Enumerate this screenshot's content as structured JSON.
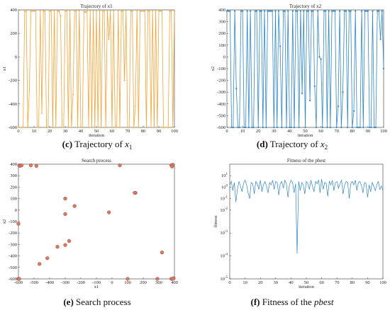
{
  "chart_data": [
    {
      "type": "line",
      "title": "Trajectory of x1",
      "xlabel": "iteration",
      "ylabel": "x1",
      "xlim": [
        0,
        100
      ],
      "ylim": [
        -600,
        400
      ],
      "xticks": [
        "0",
        "10",
        "20",
        "30",
        "40",
        "50",
        "60",
        "70",
        "80",
        "90",
        "100"
      ],
      "yticks": [
        "400",
        "200",
        "0",
        "-200",
        "-400",
        "-600"
      ],
      "color": "#F4A236",
      "series": [
        {
          "x": [
            0,
            1,
            2,
            3,
            4,
            5,
            6,
            7,
            8,
            9,
            10,
            11,
            12,
            13,
            14,
            15,
            16,
            17,
            18,
            19,
            20,
            21,
            22,
            23,
            24,
            25,
            26,
            27,
            28,
            29,
            30,
            31,
            32,
            33,
            34,
            35,
            36,
            37,
            38,
            39,
            40,
            41,
            42,
            43,
            44,
            45,
            46,
            47,
            48,
            49,
            50,
            51,
            52,
            53,
            54,
            55,
            56,
            57,
            58,
            59,
            60,
            61,
            62,
            63,
            64,
            65,
            66,
            67,
            68,
            69,
            70,
            71,
            72,
            73,
            74,
            75,
            76,
            77,
            78,
            79,
            80,
            81,
            82,
            83,
            84,
            85,
            86,
            87,
            88,
            89,
            90,
            91,
            92,
            93,
            94,
            95,
            96,
            97,
            98,
            99,
            100
          ],
          "values": [
            -600,
            -600,
            -600,
            -600,
            390,
            390,
            -600,
            -280,
            390,
            390,
            390,
            390,
            -600,
            -600,
            390,
            -480,
            390,
            390,
            -600,
            -600,
            390,
            390,
            -600,
            390,
            -600,
            390,
            390,
            350,
            -600,
            -600,
            390,
            390,
            -600,
            390,
            -600,
            -320,
            390,
            390,
            -600,
            390,
            -600,
            -600,
            390,
            380,
            390,
            -600,
            390,
            -600,
            390,
            -600,
            390,
            -600,
            390,
            -600,
            390,
            390,
            -600,
            390,
            150,
            390,
            -600,
            390,
            -600,
            -600,
            390,
            -600,
            390,
            390,
            -200,
            390,
            -600,
            -600,
            390,
            390,
            -600,
            -420,
            390,
            -600,
            390,
            390,
            390,
            390,
            -600,
            390,
            390,
            -600,
            390,
            -600,
            390,
            -600,
            390,
            390,
            390,
            -600,
            -600,
            -600,
            -600,
            390,
            390,
            -600,
            390
          ]
        }
      ]
    },
    {
      "type": "line",
      "title": "Trajectory of x2",
      "xlabel": "iteration",
      "ylabel": "x2",
      "xlim": [
        0,
        100
      ],
      "ylim": [
        -600,
        400
      ],
      "xticks": [
        "0",
        "10",
        "20",
        "30",
        "40",
        "50",
        "60",
        "70",
        "80",
        "90",
        "100"
      ],
      "yticks": [
        "400",
        "300",
        "200",
        "100",
        "0",
        "-100",
        "-200",
        "-300",
        "-400",
        "-500",
        "-600"
      ],
      "color": "#2E86C8",
      "series": [
        {
          "x": [
            0,
            1,
            2,
            3,
            4,
            5,
            6,
            7,
            8,
            9,
            10,
            11,
            12,
            13,
            14,
            15,
            16,
            17,
            18,
            19,
            20,
            21,
            22,
            23,
            24,
            25,
            26,
            27,
            28,
            29,
            30,
            31,
            32,
            33,
            34,
            35,
            36,
            37,
            38,
            39,
            40,
            41,
            42,
            43,
            44,
            45,
            46,
            47,
            48,
            49,
            50,
            51,
            52,
            53,
            54,
            55,
            56,
            57,
            58,
            59,
            60,
            61,
            62,
            63,
            64,
            65,
            66,
            67,
            68,
            69,
            70,
            71,
            72,
            73,
            74,
            75,
            76,
            77,
            78,
            79,
            80,
            81,
            82,
            83,
            84,
            85,
            86,
            87,
            88,
            89,
            90,
            91,
            92,
            93,
            94,
            95,
            96,
            97,
            98,
            99,
            100
          ],
          "values": [
            390,
            390,
            390,
            -600,
            -600,
            390,
            -270,
            -600,
            -600,
            390,
            390,
            -600,
            -600,
            390,
            -600,
            390,
            -600,
            -600,
            390,
            390,
            -600,
            390,
            390,
            -600,
            390,
            -600,
            390,
            390,
            390,
            390,
            -600,
            390,
            -600,
            390,
            90,
            -600,
            390,
            390,
            -600,
            390,
            -600,
            -600,
            390,
            -600,
            390,
            390,
            -600,
            390,
            -310,
            390,
            -600,
            390,
            390,
            -370,
            390,
            390,
            -250,
            -600,
            390,
            0,
            -20,
            -600,
            390,
            390,
            -600,
            390,
            -600,
            390,
            390,
            390,
            -600,
            -420,
            390,
            -600,
            -300,
            390,
            390,
            -600,
            390,
            390,
            -600,
            -460,
            390,
            -600,
            -600,
            -600,
            390,
            -600,
            390,
            390,
            390,
            -600,
            -600,
            390,
            -600,
            -600,
            390,
            390,
            150,
            390,
            -100
          ]
        }
      ]
    },
    {
      "type": "scatter",
      "title": "Search process",
      "xlabel": "x1",
      "ylabel": "x2",
      "xlim": [
        -600,
        400
      ],
      "ylim": [
        -600,
        400
      ],
      "xticks": [
        "-600",
        "-500",
        "-400",
        "-300",
        "-200",
        "-100",
        "0",
        "100",
        "200",
        "300",
        "400"
      ],
      "yticks": [
        "400",
        "300",
        "200",
        "100",
        "0",
        "-100",
        "-200",
        "-300",
        "-400",
        "-500",
        "-600"
      ],
      "color": "#E07B4A",
      "points": [
        [
          -595,
          390
        ],
        [
          -590,
          385
        ],
        [
          -580,
          390
        ],
        [
          -520,
          390
        ],
        [
          -485,
          385
        ],
        [
          50,
          390
        ],
        [
          380,
          390
        ],
        [
          390,
          395
        ],
        [
          385,
          380
        ],
        [
          -600,
          -120
        ],
        [
          -600,
          -600
        ],
        [
          -595,
          -600
        ],
        [
          150,
          150
        ],
        [
          145,
          150
        ],
        [
          -300,
          100
        ],
        [
          -240,
          35
        ],
        [
          -300,
          -35
        ],
        [
          -20,
          -20
        ],
        [
          -350,
          -320
        ],
        [
          -300,
          -305
        ],
        [
          -275,
          -270
        ],
        [
          -415,
          -420
        ],
        [
          -465,
          -470
        ],
        [
          320,
          -370
        ],
        [
          100,
          -600
        ],
        [
          290,
          -600
        ],
        [
          380,
          -600
        ],
        [
          395,
          -595
        ],
        [
          390,
          -600
        ]
      ]
    },
    {
      "type": "line",
      "title": "Fitness of the pbest",
      "xlabel": "iteration",
      "ylabel": "fitness",
      "xlim": [
        0,
        100
      ],
      "ylim_log10": [
        -8,
        2
      ],
      "xticks": [
        "0",
        "10",
        "20",
        "30",
        "40",
        "50",
        "60",
        "70",
        "80",
        "90",
        "100"
      ],
      "yticks": [
        "10^1",
        "10^0",
        "10^-1",
        "10^-2",
        "10^-3",
        "10^-4",
        "10^-5"
      ],
      "color": "#2E86C8",
      "series": [
        {
          "x": [
            0,
            1,
            2,
            3,
            4,
            5,
            6,
            7,
            8,
            9,
            10,
            11,
            12,
            13,
            14,
            15,
            16,
            17,
            18,
            19,
            20,
            21,
            22,
            23,
            24,
            25,
            26,
            27,
            28,
            29,
            30,
            31,
            32,
            33,
            34,
            35,
            36,
            37,
            38,
            39,
            40,
            41,
            42,
            43,
            44,
            45,
            46,
            47,
            48,
            49,
            50,
            51,
            52,
            53,
            54,
            55,
            56,
            57,
            58,
            59,
            60,
            61,
            62,
            63,
            64,
            65,
            66,
            67,
            68,
            69,
            70,
            71,
            72,
            73,
            74,
            75,
            76,
            77,
            78,
            79,
            80,
            81,
            82,
            83,
            84,
            85,
            86,
            87,
            88,
            89,
            90,
            91,
            92,
            93,
            94,
            95,
            96,
            97,
            98,
            99,
            100
          ],
          "log10_values": [
            0.2,
            0.5,
            -0.3,
            0.4,
            -1.3,
            -0.2,
            0.5,
            0.1,
            -0.4,
            0.3,
            0.6,
            0.2,
            -0.5,
            -1.0,
            0.4,
            0.3,
            -0.6,
            0.5,
            0.3,
            -0.2,
            0.6,
            -0.4,
            0.2,
            0.5,
            0.1,
            -0.5,
            0.4,
            0.2,
            0.6,
            -0.2,
            0.5,
            0.4,
            -0.7,
            0.3,
            0.5,
            -0.1,
            0.6,
            0.3,
            -0.9,
            0.2,
            0.6,
            0.4,
            -0.5,
            0.3,
            -5.8,
            0.5,
            -0.3,
            0.4,
            0.2,
            -0.6,
            0.5,
            0.3,
            -0.2,
            0.6,
            0.1,
            -0.4,
            0.5,
            0.3,
            0.6,
            -0.5,
            0.7,
            -0.2,
            0.4,
            0.3,
            -0.8,
            0.5,
            0.2,
            0.6,
            -0.3,
            0.4,
            0.5,
            -0.1,
            0.3,
            0.6,
            -0.6,
            0.2,
            0.5,
            0.4,
            -1.0,
            0.3,
            0.5,
            0.2,
            0.6,
            -0.3,
            0.4,
            0.5,
            0.1,
            -0.5,
            0.4,
            0.3,
            -0.9,
            0.2,
            -0.4,
            0.4,
            0.1,
            -0.3,
            0.2,
            0.5,
            -0.2,
            0.1,
            -0.3
          ]
        }
      ]
    }
  ],
  "captions": {
    "c": {
      "letter": "(c)",
      "text": "Trajectory of ",
      "var": "x",
      "sub": "1"
    },
    "d": {
      "letter": "(d)",
      "text": "Trajectory of ",
      "var": "x",
      "sub": "2"
    },
    "e": {
      "letter": "(e)",
      "text": "Search process"
    },
    "f": {
      "letter": "(f)",
      "text": "Fitness of the ",
      "ital": "pbest"
    }
  }
}
